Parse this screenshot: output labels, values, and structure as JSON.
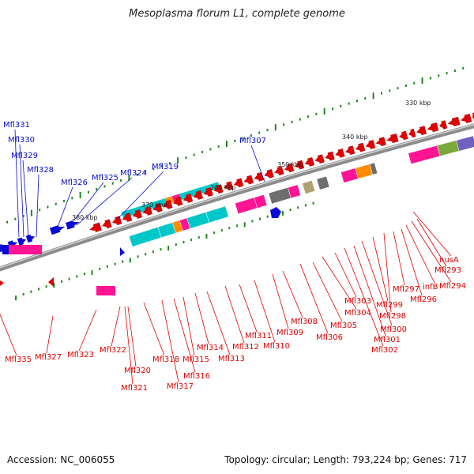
{
  "title": "Mesoplasma florum L1, complete genome",
  "footer": {
    "accession": "Accession: NC_006055",
    "summary": "Topology: circular; Length: 793,224 bp; Genes: 717"
  },
  "colors": {
    "forward_strand": "#0a0ad6",
    "reverse_strand": "#e00000",
    "backbone": "#8c8c8c",
    "gc_ticks": "#1a8a1a",
    "cog_palette": [
      "#ff1493",
      "#00c8c8",
      "#ff8c00",
      "#6e6e6e",
      "#7aa83a",
      "#7060c0",
      "#b0a070"
    ]
  },
  "scale_labels": [
    "330 kbp",
    "340 kbp",
    "350 kbp",
    "360 kbp",
    "370 kbp",
    "380 kbp"
  ],
  "forward_labels": [
    "Mfl331",
    "Mfl330",
    "Mfl329",
    "Mfl328",
    "Mfl326",
    "Mfl325",
    "Mfl324",
    "Mfl319",
    "Mfl307"
  ],
  "reverse_labels": [
    "Mfl335",
    "Mfl327",
    "Mfl323",
    "Mfl322",
    "Mfl320",
    "Mfl321",
    "Mfl318",
    "Mfl317",
    "Mfl316",
    "Mfl315",
    "Mfl314",
    "Mfl313",
    "Mfl312",
    "Mfl311",
    "Mfl310",
    "Mfl309",
    "Mfl308",
    "Mfl306",
    "Mfl305",
    "Mfl304",
    "Mfl303",
    "Mfl302",
    "Mfl301",
    "Mfl300",
    "Mfl299",
    "Mfl298",
    "Mfl297",
    "Mfl296",
    "infB",
    "Mfl294",
    "Mfl293",
    "nusA"
  ]
}
